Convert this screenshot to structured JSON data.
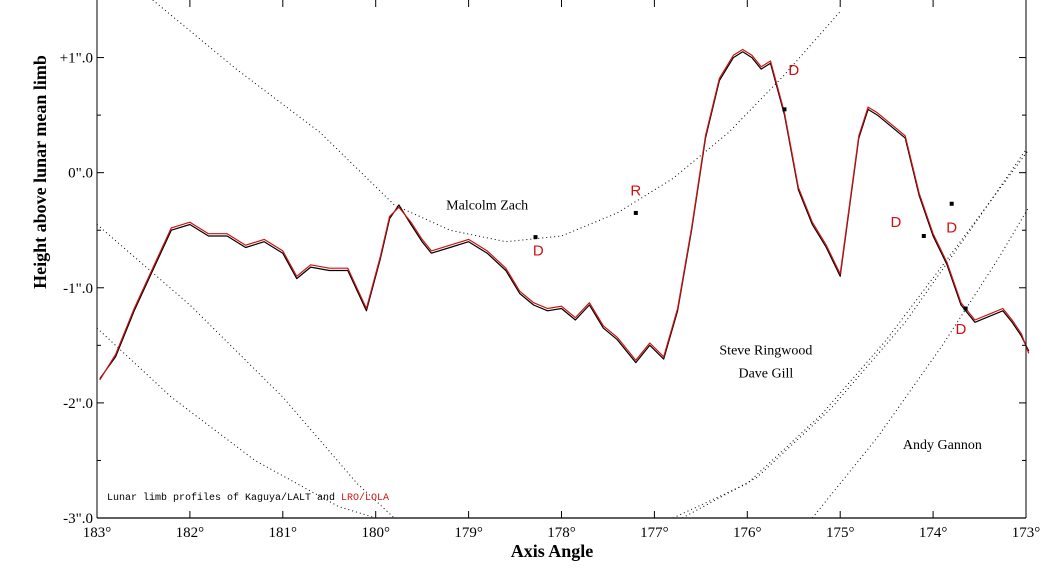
{
  "chart_data": {
    "type": "line",
    "xlabel": "Axis Angle",
    "ylabel": "Height above lunar mean limb",
    "xlim": [
      183,
      173
    ],
    "ylim": [
      -3,
      1.5
    ],
    "x_ticks": [
      {
        "value": 183,
        "label": "183°"
      },
      {
        "value": 182,
        "label": "182°"
      },
      {
        "value": 181,
        "label": "181°"
      },
      {
        "value": 180,
        "label": "180°"
      },
      {
        "value": 179,
        "label": "179°"
      },
      {
        "value": 178,
        "label": "178°"
      },
      {
        "value": 177,
        "label": "177°"
      },
      {
        "value": 176,
        "label": "176°"
      },
      {
        "value": 175,
        "label": "175°"
      },
      {
        "value": 174,
        "label": "174°"
      },
      {
        "value": 173,
        "label": "173°"
      }
    ],
    "y_ticks": [
      {
        "value": 1,
        "label": "+1\".0"
      },
      {
        "value": 0,
        "label": "0\".0"
      },
      {
        "value": -1,
        "label": "-1\".0"
      },
      {
        "value": -2,
        "label": "-2\".0"
      },
      {
        "value": -3,
        "label": "-3\".0"
      }
    ],
    "legend": {
      "prefix": "Lunar limb profiles of Kaguya/LALT and ",
      "highlight": "LRO/LOLA",
      "highlight_color": "#d01010"
    },
    "series": [
      {
        "name": "Kaguya/LALT",
        "color": "#000000",
        "x": [
          182.97,
          182.8,
          182.6,
          182.4,
          182.2,
          182.0,
          181.8,
          181.6,
          181.4,
          181.2,
          181.0,
          180.85,
          180.7,
          180.5,
          180.3,
          180.1,
          179.95,
          179.85,
          179.75,
          179.62,
          179.5,
          179.4,
          179.2,
          179.0,
          178.8,
          178.6,
          178.45,
          178.3,
          178.15,
          178.0,
          177.85,
          177.7,
          177.55,
          177.4,
          177.2,
          177.05,
          176.9,
          176.75,
          176.6,
          176.45,
          176.3,
          176.15,
          176.05,
          175.95,
          175.85,
          175.75,
          175.6,
          175.45,
          175.3,
          175.15,
          175.0,
          174.9,
          174.8,
          174.7,
          174.6,
          174.45,
          174.3,
          174.15,
          174.0,
          173.85,
          173.7,
          173.55,
          173.4,
          173.25,
          173.15,
          173.05,
          172.97
        ],
        "values": [
          -1.79,
          -1.6,
          -1.2,
          -0.85,
          -0.5,
          -0.45,
          -0.55,
          -0.55,
          -0.65,
          -0.6,
          -0.7,
          -0.92,
          -0.82,
          -0.85,
          -0.85,
          -1.2,
          -0.75,
          -0.4,
          -0.28,
          -0.45,
          -0.6,
          -0.7,
          -0.65,
          -0.6,
          -0.7,
          -0.85,
          -1.05,
          -1.15,
          -1.2,
          -1.18,
          -1.28,
          -1.15,
          -1.35,
          -1.45,
          -1.65,
          -1.5,
          -1.62,
          -1.2,
          -0.5,
          0.3,
          0.8,
          1.0,
          1.05,
          1.0,
          0.9,
          0.95,
          0.5,
          -0.15,
          -0.45,
          -0.65,
          -0.9,
          -0.3,
          0.3,
          0.55,
          0.5,
          0.4,
          0.3,
          -0.2,
          -0.55,
          -0.8,
          -1.15,
          -1.3,
          -1.25,
          -1.2,
          -1.3,
          -1.42,
          -1.55
        ]
      },
      {
        "name": "LRO/LOLA",
        "color": "#d01010",
        "x": [
          182.97,
          182.8,
          182.6,
          182.4,
          182.2,
          182.0,
          181.8,
          181.6,
          181.4,
          181.2,
          181.0,
          180.85,
          180.7,
          180.5,
          180.3,
          180.1,
          179.95,
          179.85,
          179.75,
          179.62,
          179.5,
          179.4,
          179.2,
          179.0,
          178.8,
          178.6,
          178.45,
          178.3,
          178.15,
          178.0,
          177.85,
          177.7,
          177.55,
          177.4,
          177.2,
          177.05,
          176.9,
          176.75,
          176.6,
          176.45,
          176.3,
          176.15,
          176.05,
          175.95,
          175.85,
          175.75,
          175.6,
          175.45,
          175.3,
          175.15,
          175.0,
          174.9,
          174.8,
          174.7,
          174.6,
          174.45,
          174.3,
          174.15,
          174.0,
          173.85,
          173.7,
          173.55,
          173.4,
          173.25,
          173.15,
          173.05,
          172.97
        ],
        "values": [
          -1.8,
          -1.58,
          -1.18,
          -0.83,
          -0.48,
          -0.43,
          -0.53,
          -0.53,
          -0.63,
          -0.58,
          -0.68,
          -0.9,
          -0.8,
          -0.83,
          -0.83,
          -1.18,
          -0.73,
          -0.38,
          -0.3,
          -0.43,
          -0.58,
          -0.68,
          -0.63,
          -0.58,
          -0.68,
          -0.83,
          -1.03,
          -1.13,
          -1.18,
          -1.16,
          -1.26,
          -1.13,
          -1.33,
          -1.43,
          -1.63,
          -1.48,
          -1.6,
          -1.18,
          -0.48,
          0.32,
          0.82,
          1.02,
          1.07,
          1.02,
          0.92,
          0.97,
          0.52,
          -0.13,
          -0.43,
          -0.63,
          -0.88,
          -0.28,
          0.32,
          0.57,
          0.52,
          0.42,
          0.32,
          -0.18,
          -0.53,
          -0.78,
          -1.13,
          -1.28,
          -1.23,
          -1.18,
          -1.28,
          -1.4,
          -1.57
        ]
      }
    ],
    "observer_paths": [
      {
        "x": [
          182.4,
          181.5,
          180.6,
          179.8,
          179.2,
          178.6,
          178.0,
          177.4,
          176.8,
          176.2,
          175.6,
          175.0
        ],
        "values": [
          1.5,
          0.9,
          0.35,
          -0.28,
          -0.5,
          -0.6,
          -0.55,
          -0.35,
          -0.05,
          0.35,
          0.85,
          1.4
        ]
      },
      {
        "x": [
          183.0,
          182.0,
          181.0,
          180.2,
          179.8
        ],
        "values": [
          -0.45,
          -1.15,
          -1.95,
          -2.7,
          -3.0
        ]
      },
      {
        "x": [
          183.0,
          182.2,
          181.3,
          180.4,
          180.0
        ],
        "values": [
          -1.35,
          -1.95,
          -2.5,
          -2.9,
          -3.0
        ]
      },
      {
        "x": [
          176.8,
          176.0,
          175.2,
          174.5,
          173.8,
          173.2,
          172.97
        ],
        "values": [
          -3.0,
          -2.7,
          -2.1,
          -1.45,
          -0.7,
          -0.05,
          0.2
        ]
      },
      {
        "x": [
          176.7,
          175.9,
          175.1,
          174.3,
          173.6,
          173.0
        ],
        "values": [
          -3.0,
          -2.65,
          -2.05,
          -1.3,
          -0.5,
          0.2
        ]
      },
      {
        "x": [
          175.3,
          174.6,
          173.9,
          173.3,
          172.97
        ],
        "values": [
          -3.0,
          -2.3,
          -1.5,
          -0.75,
          -0.3
        ]
      }
    ],
    "observers": [
      {
        "name": "Malcolm Zach",
        "x": 178.8,
        "y": -0.32
      },
      {
        "name": "Steve Ringwood",
        "x": 175.8,
        "y": -1.58
      },
      {
        "name": "Dave Gill",
        "x": 175.8,
        "y": -1.78
      },
      {
        "name": "Andy Gannon",
        "x": 173.9,
        "y": -2.4
      }
    ],
    "events": [
      {
        "label": "D",
        "x": 175.5,
        "y": 0.85
      },
      {
        "label": "R",
        "x": 177.2,
        "y": -0.2
      },
      {
        "label": "D",
        "x": 178.25,
        "y": -0.72
      },
      {
        "label": "D",
        "x": 174.4,
        "y": -0.47
      },
      {
        "label": "D",
        "x": 173.8,
        "y": -0.52
      },
      {
        "label": "D",
        "x": 173.7,
        "y": -1.4
      }
    ],
    "event_points": [
      {
        "x": 175.6,
        "y": 0.55
      },
      {
        "x": 177.2,
        "y": -0.35
      },
      {
        "x": 178.28,
        "y": -0.56
      },
      {
        "x": 174.1,
        "y": -0.55
      },
      {
        "x": 173.8,
        "y": -0.27
      },
      {
        "x": 173.65,
        "y": -1.18
      }
    ],
    "grid": false
  }
}
